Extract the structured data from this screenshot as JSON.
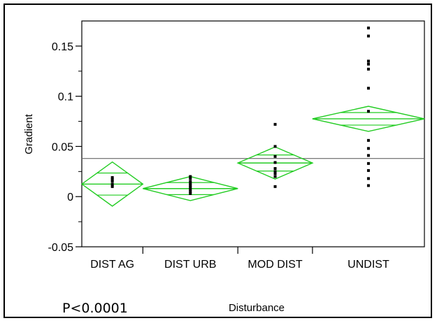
{
  "chart_data": {
    "type": "scatter",
    "subtype": "one-way means comparison diamonds",
    "xlabel": "Disturbance",
    "ylabel": "Gradient",
    "annotation": "P<0.0001",
    "ylim": [
      -0.05,
      0.175
    ],
    "yticks": [
      -0.05,
      0,
      0.05,
      0.1,
      0.15
    ],
    "ytick_labels": [
      "-0.05",
      "0",
      "0.05",
      "0.1",
      "0.15"
    ],
    "grand_mean": 0.038,
    "colors": {
      "diamond": "#22cc22",
      "points": "#000000",
      "axis": "#000000",
      "grand_mean_line": "#666666"
    },
    "categories": [
      {
        "label": "DIST AG",
        "relative_width": 0.72,
        "mean": 0.0125,
        "lower": -0.0095,
        "upper": 0.0345,
        "points": [
          0.01,
          0.012,
          0.015,
          0.017,
          0.019
        ]
      },
      {
        "label": "DIST URB",
        "relative_width": 1.12,
        "mean": 0.008,
        "lower": -0.004,
        "upper": 0.02,
        "points": [
          0.003,
          0.005,
          0.007,
          0.009,
          0.011,
          0.013,
          0.015,
          0.018,
          0.02
        ]
      },
      {
        "label": "MOD DIST",
        "relative_width": 0.88,
        "mean": 0.0335,
        "lower": 0.0175,
        "upper": 0.0495,
        "points": [
          0.01,
          0.02,
          0.023,
          0.025,
          0.028,
          0.034,
          0.04,
          0.05,
          0.072
        ]
      },
      {
        "label": "UNDIST",
        "relative_width": 1.32,
        "mean": 0.0775,
        "lower": 0.065,
        "upper": 0.09,
        "points": [
          0.011,
          0.018,
          0.026,
          0.033,
          0.041,
          0.048,
          0.056,
          0.085,
          0.108,
          0.127,
          0.132,
          0.135,
          0.16,
          0.168
        ]
      }
    ]
  }
}
